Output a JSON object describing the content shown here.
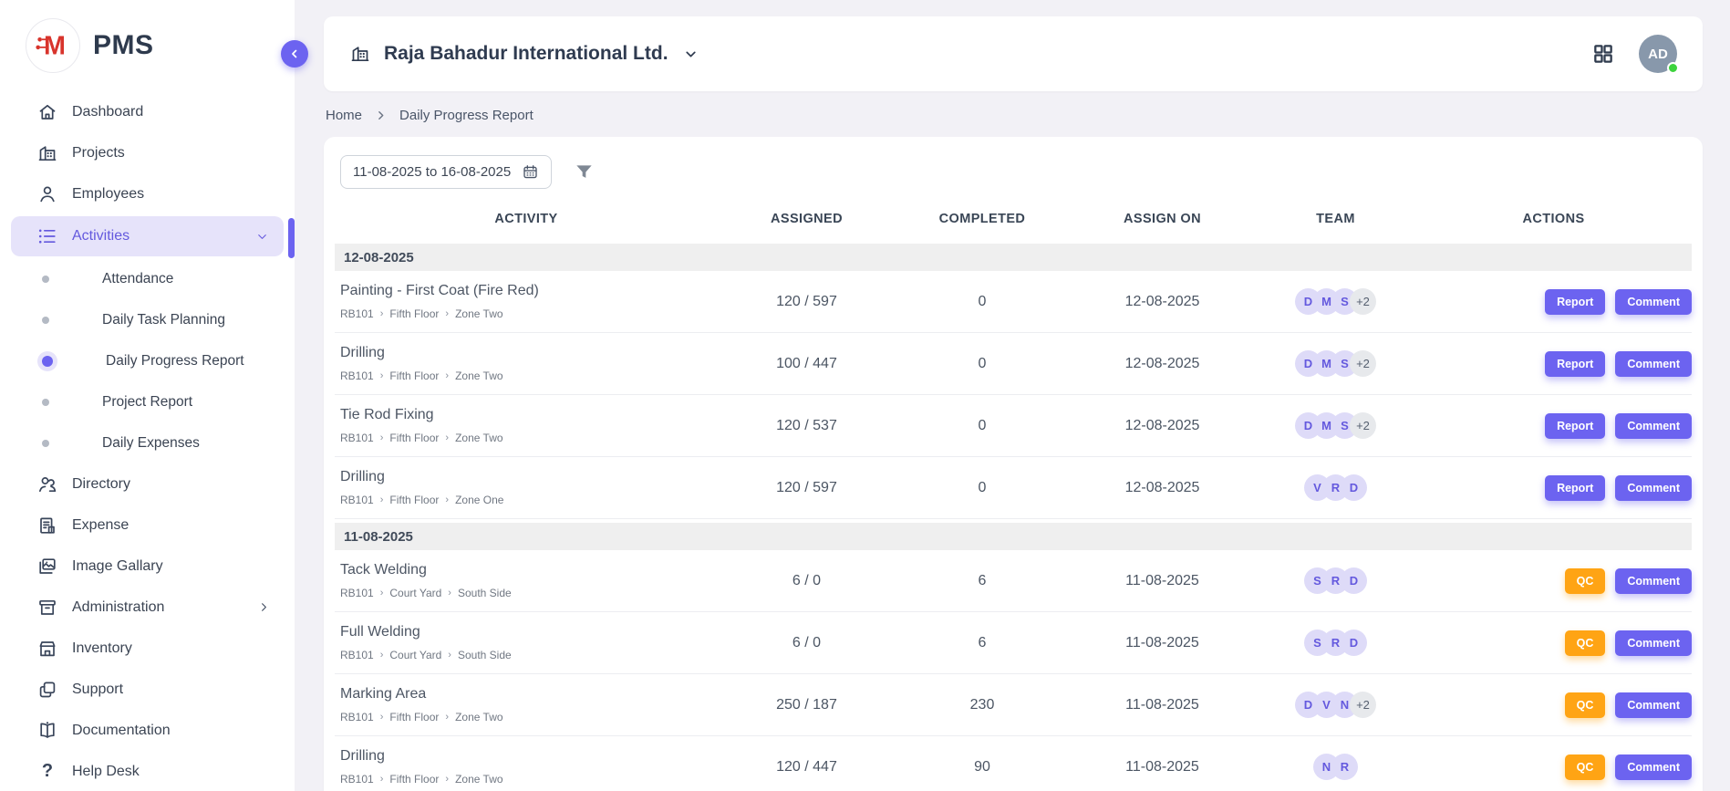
{
  "app": {
    "name": "PMS"
  },
  "sidebar": {
    "items": [
      {
        "label": "Dashboard",
        "icon": "home"
      },
      {
        "label": "Projects",
        "icon": "building"
      },
      {
        "label": "Employees",
        "icon": "person"
      },
      {
        "label": "Activities",
        "icon": "list",
        "active": true,
        "expanded": true,
        "children": [
          {
            "label": "Attendance"
          },
          {
            "label": "Daily Task Planning"
          },
          {
            "label": "Daily Progress Report",
            "active": true
          },
          {
            "label": "Project Report"
          },
          {
            "label": "Daily Expenses"
          }
        ]
      },
      {
        "label": "Directory",
        "icon": "people"
      },
      {
        "label": "Expense",
        "icon": "receipt"
      },
      {
        "label": "Image Gallary",
        "icon": "gallery"
      },
      {
        "label": "Administration",
        "icon": "archive",
        "has_children": true
      },
      {
        "label": "Inventory",
        "icon": "store"
      },
      {
        "label": "Support",
        "icon": "copy"
      },
      {
        "label": "Documentation",
        "icon": "book"
      },
      {
        "label": "Help Desk",
        "icon": "question"
      }
    ]
  },
  "header": {
    "company": "Raja Bahadur International Ltd.",
    "avatar_initials": "AD"
  },
  "breadcrumb": {
    "items": [
      "Home",
      "Daily Progress Report"
    ]
  },
  "filters": {
    "date_range": "11-08-2025 to 16-08-2025"
  },
  "table": {
    "columns": [
      "Activity",
      "Assigned",
      "Completed",
      "Assign On",
      "Team",
      "Actions"
    ],
    "groups": [
      {
        "date": "12-08-2025",
        "rows": [
          {
            "title": "Painting - First Coat (Fire Red)",
            "path": [
              "RB101",
              "Fifth Floor",
              "Zone Two"
            ],
            "assigned": "120 / 597",
            "completed": "0",
            "assign_on": "12-08-2025",
            "team": [
              "D",
              "M",
              "S",
              "+2"
            ],
            "actions": [
              "Report",
              "Comment"
            ]
          },
          {
            "title": "Drilling",
            "path": [
              "RB101",
              "Fifth Floor",
              "Zone Two"
            ],
            "assigned": "100 / 447",
            "completed": "0",
            "assign_on": "12-08-2025",
            "team": [
              "D",
              "M",
              "S",
              "+2"
            ],
            "actions": [
              "Report",
              "Comment"
            ]
          },
          {
            "title": "Tie Rod Fixing",
            "path": [
              "RB101",
              "Fifth Floor",
              "Zone Two"
            ],
            "assigned": "120 / 537",
            "completed": "0",
            "assign_on": "12-08-2025",
            "team": [
              "D",
              "M",
              "S",
              "+2"
            ],
            "actions": [
              "Report",
              "Comment"
            ]
          },
          {
            "title": "Drilling",
            "path": [
              "RB101",
              "Fifth Floor",
              "Zone One"
            ],
            "assigned": "120 / 597",
            "completed": "0",
            "assign_on": "12-08-2025",
            "team": [
              "V",
              "R",
              "D"
            ],
            "actions": [
              "Report",
              "Comment"
            ]
          }
        ]
      },
      {
        "date": "11-08-2025",
        "rows": [
          {
            "title": "Tack Welding",
            "path": [
              "RB101",
              "Court Yard",
              "South Side"
            ],
            "assigned": "6 / 0",
            "completed": "6",
            "assign_on": "11-08-2025",
            "team": [
              "S",
              "R",
              "D"
            ],
            "actions": [
              "QC",
              "Comment"
            ]
          },
          {
            "title": "Full Welding",
            "path": [
              "RB101",
              "Court Yard",
              "South Side"
            ],
            "assigned": "6 / 0",
            "completed": "6",
            "assign_on": "11-08-2025",
            "team": [
              "S",
              "R",
              "D"
            ],
            "actions": [
              "QC",
              "Comment"
            ]
          },
          {
            "title": "Marking Area",
            "path": [
              "RB101",
              "Fifth Floor",
              "Zone Two"
            ],
            "assigned": "250 / 187",
            "completed": "230",
            "assign_on": "11-08-2025",
            "team": [
              "D",
              "V",
              "N",
              "+2"
            ],
            "actions": [
              "QC",
              "Comment"
            ]
          },
          {
            "title": "Drilling",
            "path": [
              "RB101",
              "Fifth Floor",
              "Zone Two"
            ],
            "assigned": "120 / 447",
            "completed": "90",
            "assign_on": "11-08-2025",
            "team": [
              "N",
              "R"
            ],
            "actions": [
              "QC",
              "Comment"
            ]
          }
        ]
      }
    ]
  },
  "colors": {
    "accent_purple": "#6C63F0",
    "accent_purple_text": "#6459DE",
    "active_pill_bg": "#E6E3FA",
    "qc_orange": "#FFA414",
    "team_avatar_bg": "#DEDBF8",
    "logo_red": "#D8342C",
    "online_green": "#3DD33D",
    "header_avatar_bg": "#8898AB",
    "group_bar_bg": "#EFEFEF",
    "page_bg": "#F2F1F6"
  }
}
